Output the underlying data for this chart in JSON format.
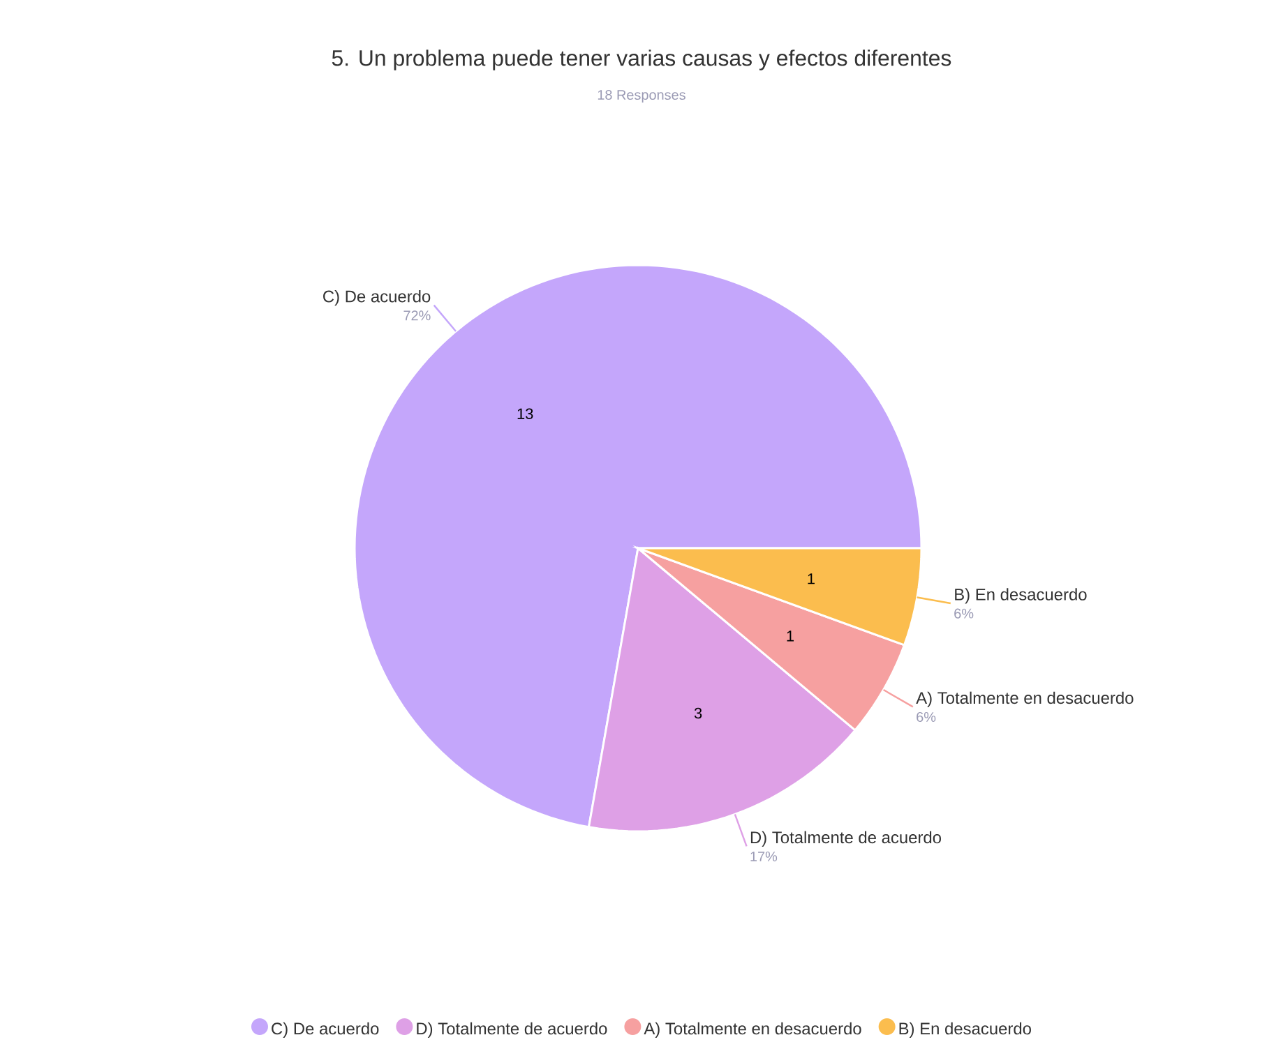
{
  "chart_data": {
    "type": "pie",
    "title": "5. Un problema puede tener varias causas y efectos diferentes",
    "subtitle": "18 Responses",
    "categories": [
      "C) De acuerdo",
      "D) Totalmente de acuerdo",
      "A) Totalmente en desacuerdo",
      "B) En desacuerdo"
    ],
    "values": [
      13,
      3,
      1,
      1
    ],
    "colors": [
      "#c4a6fb",
      "#dea0e6",
      "#f6a0a0",
      "#fbbd4e"
    ],
    "data_labels": true,
    "annotations": [
      "72%",
      "17%",
      "6%",
      "6%"
    ],
    "legend": "bottom"
  }
}
